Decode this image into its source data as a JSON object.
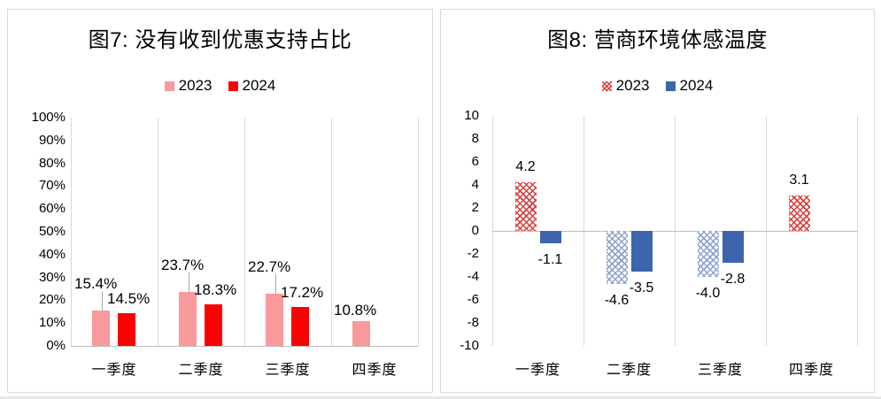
{
  "chart_data": [
    {
      "type": "bar",
      "title": "图7: 没有收到优惠支持占比",
      "categories": [
        "一季度",
        "二季度",
        "三季度",
        "四季度"
      ],
      "series": [
        {
          "name": "2023",
          "values": [
            15.4,
            23.7,
            22.7,
            10.8
          ],
          "data_labels": [
            "15.4%",
            "23.7%",
            "22.7%",
            "10.8%"
          ],
          "fill": "solid",
          "color": "#f8999c"
        },
        {
          "name": "2024",
          "values": [
            14.5,
            18.3,
            17.2,
            null
          ],
          "data_labels": [
            "14.5%",
            "18.3%",
            "17.2%",
            null
          ],
          "fill": "solid",
          "color": "#fa0000"
        }
      ],
      "ylim": [
        0,
        100
      ],
      "y_tick_values": [
        0,
        10,
        20,
        30,
        40,
        50,
        60,
        70,
        80,
        90,
        100
      ],
      "y_ticks": [
        "0%",
        "10%",
        "20%",
        "30%",
        "40%",
        "50%",
        "60%",
        "70%",
        "80%",
        "90%",
        "100%"
      ],
      "xlabel": "",
      "ylabel": "",
      "gridlines": "vertical-category-only",
      "legend_position": "top"
    },
    {
      "type": "bar",
      "title": "图8: 营商环境体感温度",
      "categories": [
        "一季度",
        "二季度",
        "三季度",
        "四季度"
      ],
      "series": [
        {
          "name": "2023",
          "values": [
            4.2,
            -4.6,
            -4.0,
            3.1
          ],
          "data_labels": [
            "4.2",
            "-4.6",
            "-4.0",
            "3.1"
          ],
          "fill": "hatch",
          "color_positive": "#dc3c3c",
          "color_negative": "#8aa2cf"
        },
        {
          "name": "2024",
          "values": [
            -1.1,
            -3.5,
            -2.8,
            null
          ],
          "data_labels": [
            "-1.1",
            "-3.5",
            "-2.8",
            null
          ],
          "fill": "solid",
          "color": "#3d65ae"
        }
      ],
      "ylim": [
        -10,
        10
      ],
      "y_tick_values": [
        10,
        8,
        6,
        4,
        2,
        0,
        -2,
        -4,
        -6,
        -8,
        -10
      ],
      "y_ticks": [
        "10",
        "8",
        "6",
        "4",
        "2",
        "0",
        "-2",
        "-4",
        "-6",
        "-8",
        "-10"
      ],
      "xlabel": "",
      "ylabel": "",
      "gridlines": "vertical-category-only",
      "legend_position": "top"
    }
  ],
  "style": {
    "gridline_color": "#d9d9d9",
    "axis_line_color": "#bfbfbf",
    "leader_line_color": "#a6a6a6",
    "text_color": "#000000",
    "panel_border_color": "#d9d9d9"
  }
}
